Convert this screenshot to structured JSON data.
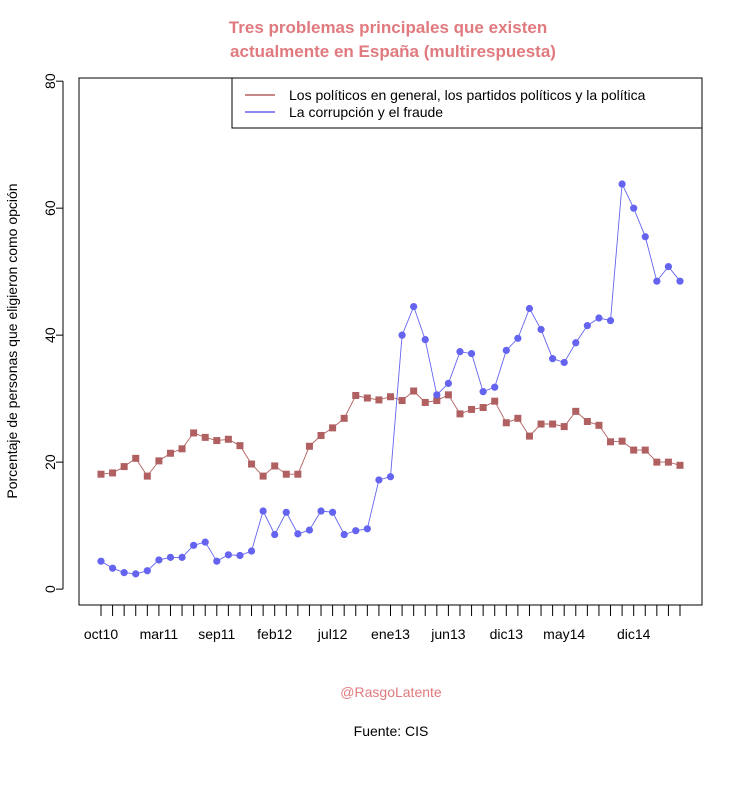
{
  "chart_data": {
    "type": "line",
    "title_line1": "Tres problemas principales que existen",
    "title_line2": "actualmente en España (multirespuesta)",
    "title_color": "#E07A7E",
    "xlabel": "",
    "ylabel": "Porcentaje de personas que eligieron como opción",
    "ylim": [
      -2.5,
      80.5
    ],
    "yticks": [
      0,
      20,
      40,
      60,
      80
    ],
    "n_points": 51,
    "x_tick_labels": [
      {
        "index": 0,
        "label": "oct10"
      },
      {
        "index": 5,
        "label": "mar11"
      },
      {
        "index": 10,
        "label": "sep11"
      },
      {
        "index": 15,
        "label": "feb12"
      },
      {
        "index": 20,
        "label": "jul12"
      },
      {
        "index": 25,
        "label": "ene13"
      },
      {
        "index": 30,
        "label": "jun13"
      },
      {
        "index": 35,
        "label": "dic13"
      },
      {
        "index": 40,
        "label": "may14"
      },
      {
        "index": 46,
        "label": "dic14"
      }
    ],
    "legend_position": "top-right",
    "series": [
      {
        "name": "Los políticos en general, los partidos políticos y la política",
        "color": "#B06060",
        "marker": "square",
        "values": [
          18.1,
          18.3,
          19.3,
          20.6,
          17.8,
          20.2,
          21.4,
          22.1,
          24.6,
          23.9,
          23.4,
          23.6,
          22.6,
          19.7,
          17.8,
          19.4,
          18.1,
          18.1,
          22.5,
          24.2,
          25.4,
          26.9,
          30.5,
          30.1,
          29.8,
          30.3,
          29.7,
          31.2,
          29.4,
          29.7,
          30.6,
          27.6,
          28.3,
          28.6,
          29.6,
          26.2,
          26.9,
          24.1,
          26.0,
          26.0,
          25.6,
          28.0,
          26.4,
          25.8,
          23.2,
          23.3,
          21.9,
          21.9,
          20.0,
          20.0,
          19.5
        ]
      },
      {
        "name": "La corrupción y el fraude",
        "color": "#6464F0",
        "marker": "circle",
        "values": [
          4.4,
          3.3,
          2.6,
          2.4,
          2.9,
          4.6,
          5.0,
          5.0,
          6.9,
          7.4,
          4.4,
          5.4,
          5.3,
          6.0,
          12.3,
          8.6,
          12.1,
          8.7,
          9.3,
          12.3,
          12.1,
          8.6,
          9.2,
          9.5,
          17.2,
          17.7,
          40.0,
          44.5,
          39.3,
          30.6,
          32.4,
          37.4,
          37.1,
          31.1,
          31.8,
          37.6,
          39.5,
          44.2,
          40.9,
          36.3,
          35.7,
          38.8,
          41.5,
          42.7,
          42.3,
          63.8,
          60.0,
          55.5,
          48.5,
          50.8,
          48.5
        ]
      }
    ]
  },
  "footer": {
    "credit": "@RasgoLatente",
    "credit_color": "#E07A7E",
    "source": "Fuente: CIS"
  }
}
